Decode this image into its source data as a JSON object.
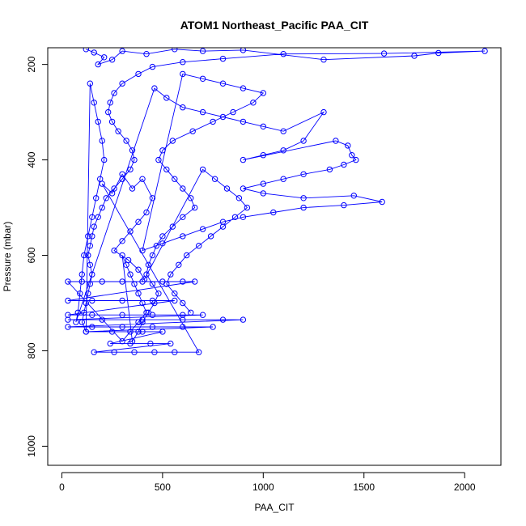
{
  "chart_data": {
    "type": "scatter",
    "title": "ATOM1 Northeast_Pacific PAA_CIT",
    "xlabel": "PAA_CIT",
    "ylabel": "Pressure (mbar)",
    "xlim": [
      -70,
      2180
    ],
    "ylim": [
      1040,
      165
    ],
    "y_reversed": true,
    "x_ticks": [
      0,
      500,
      1000,
      1500,
      2000
    ],
    "x_tick_labels": [
      "0",
      "500",
      "1000",
      "1500",
      "2000"
    ],
    "y_ticks": [
      200,
      400,
      600,
      800,
      1000
    ],
    "y_tick_labels": [
      "200",
      "400",
      "600",
      "800",
      "1000"
    ],
    "grid": false,
    "legend": "none",
    "marker": "open-circle",
    "line": "connected",
    "color": "#0000ff",
    "series": [
      {
        "points": [
          [
            120,
            168
          ],
          [
            160,
            175
          ],
          [
            210,
            185
          ],
          [
            180,
            200
          ],
          [
            250,
            190
          ],
          [
            300,
            172
          ],
          [
            420,
            178
          ],
          [
            560,
            168
          ],
          [
            700,
            172
          ],
          [
            900,
            170
          ],
          [
            1300,
            190
          ],
          [
            1750,
            182
          ],
          [
            1870,
            176
          ],
          [
            2100,
            172
          ],
          [
            1600,
            177
          ],
          [
            1100,
            178
          ],
          [
            800,
            188
          ],
          [
            600,
            195
          ],
          [
            450,
            205
          ],
          [
            380,
            220
          ],
          [
            300,
            240
          ],
          [
            260,
            260
          ],
          [
            240,
            280
          ],
          [
            230,
            300
          ],
          [
            250,
            320
          ],
          [
            280,
            340
          ],
          [
            320,
            360
          ],
          [
            350,
            380
          ],
          [
            360,
            400
          ],
          [
            340,
            420
          ],
          [
            300,
            440
          ],
          [
            260,
            460
          ],
          [
            220,
            480
          ],
          [
            200,
            500
          ],
          [
            180,
            520
          ],
          [
            160,
            540
          ],
          [
            150,
            560
          ],
          [
            140,
            580
          ],
          [
            130,
            600
          ],
          [
            140,
            620
          ],
          [
            150,
            640
          ],
          [
            140,
            660
          ],
          [
            130,
            680
          ],
          [
            120,
            700
          ],
          [
            110,
            720
          ],
          [
            100,
            740
          ],
          [
            120,
            760
          ],
          [
            140,
            240
          ],
          [
            160,
            280
          ],
          [
            180,
            320
          ],
          [
            200,
            360
          ],
          [
            210,
            400
          ],
          [
            190,
            440
          ],
          [
            170,
            480
          ],
          [
            150,
            520
          ],
          [
            130,
            560
          ],
          [
            110,
            600
          ],
          [
            100,
            640
          ],
          [
            90,
            680
          ],
          [
            80,
            720
          ],
          [
            70,
            740
          ],
          [
            460,
            250
          ],
          [
            520,
            270
          ],
          [
            600,
            290
          ],
          [
            700,
            300
          ],
          [
            800,
            310
          ],
          [
            900,
            320
          ],
          [
            1000,
            330
          ],
          [
            1100,
            340
          ],
          [
            1300,
            300
          ],
          [
            1200,
            360
          ],
          [
            1100,
            380
          ],
          [
            1000,
            390
          ],
          [
            900,
            400
          ],
          [
            1360,
            360
          ],
          [
            1420,
            370
          ],
          [
            1440,
            390
          ],
          [
            1460,
            400
          ],
          [
            1400,
            410
          ],
          [
            1330,
            420
          ],
          [
            1200,
            430
          ],
          [
            1100,
            440
          ],
          [
            1000,
            450
          ],
          [
            900,
            460
          ],
          [
            1000,
            470
          ],
          [
            1200,
            480
          ],
          [
            1450,
            475
          ],
          [
            1590,
            488
          ],
          [
            1400,
            495
          ],
          [
            1200,
            500
          ],
          [
            1050,
            510
          ],
          [
            900,
            520
          ],
          [
            800,
            530
          ],
          [
            700,
            545
          ],
          [
            600,
            560
          ],
          [
            500,
            575
          ],
          [
            400,
            590
          ],
          [
            600,
            220
          ],
          [
            700,
            230
          ],
          [
            800,
            240
          ],
          [
            900,
            250
          ],
          [
            1000,
            260
          ],
          [
            950,
            280
          ],
          [
            850,
            300
          ],
          [
            750,
            320
          ],
          [
            650,
            340
          ],
          [
            550,
            360
          ],
          [
            500,
            380
          ],
          [
            480,
            400
          ],
          [
            520,
            420
          ],
          [
            560,
            440
          ],
          [
            600,
            460
          ],
          [
            640,
            480
          ],
          [
            660,
            500
          ],
          [
            600,
            520
          ],
          [
            550,
            540
          ],
          [
            500,
            560
          ],
          [
            470,
            580
          ],
          [
            450,
            600
          ],
          [
            430,
            620
          ],
          [
            420,
            640
          ],
          [
            450,
            660
          ],
          [
            480,
            680
          ],
          [
            460,
            700
          ],
          [
            430,
            720
          ],
          [
            400,
            740
          ],
          [
            380,
            760
          ],
          [
            350,
            780
          ],
          [
            300,
            600
          ],
          [
            320,
            620
          ],
          [
            340,
            640
          ],
          [
            360,
            660
          ],
          [
            380,
            680
          ],
          [
            400,
            700
          ],
          [
            420,
            720
          ],
          [
            380,
            740
          ],
          [
            340,
            760
          ],
          [
            300,
            780
          ],
          [
            30,
            655
          ],
          [
            100,
            655
          ],
          [
            200,
            655
          ],
          [
            300,
            655
          ],
          [
            400,
            655
          ],
          [
            500,
            655
          ],
          [
            600,
            655
          ],
          [
            660,
            655
          ],
          [
            30,
            695
          ],
          [
            150,
            695
          ],
          [
            300,
            695
          ],
          [
            450,
            695
          ],
          [
            560,
            695
          ],
          [
            30,
            725
          ],
          [
            150,
            725
          ],
          [
            300,
            725
          ],
          [
            450,
            725
          ],
          [
            600,
            725
          ],
          [
            700,
            725
          ],
          [
            30,
            735
          ],
          [
            200,
            735
          ],
          [
            400,
            735
          ],
          [
            600,
            735
          ],
          [
            800,
            735
          ],
          [
            900,
            735
          ],
          [
            30,
            750
          ],
          [
            150,
            750
          ],
          [
            300,
            750
          ],
          [
            450,
            750
          ],
          [
            600,
            750
          ],
          [
            750,
            750
          ],
          [
            120,
            760
          ],
          [
            250,
            760
          ],
          [
            400,
            760
          ],
          [
            500,
            760
          ],
          [
            240,
            785
          ],
          [
            340,
            785
          ],
          [
            440,
            785
          ],
          [
            540,
            785
          ],
          [
            160,
            803
          ],
          [
            260,
            803
          ],
          [
            360,
            803
          ],
          [
            460,
            803
          ],
          [
            560,
            803
          ],
          [
            680,
            803
          ],
          [
            200,
            450
          ],
          [
            250,
            470
          ],
          [
            300,
            430
          ],
          [
            350,
            460
          ],
          [
            400,
            440
          ],
          [
            450,
            480
          ],
          [
            420,
            510
          ],
          [
            380,
            530
          ],
          [
            340,
            550
          ],
          [
            300,
            570
          ],
          [
            260,
            590
          ],
          [
            330,
            610
          ],
          [
            380,
            630
          ],
          [
            410,
            650
          ],
          [
            700,
            420
          ],
          [
            760,
            440
          ],
          [
            820,
            460
          ],
          [
            880,
            480
          ],
          [
            920,
            500
          ],
          [
            860,
            520
          ],
          [
            800,
            540
          ],
          [
            740,
            560
          ],
          [
            680,
            580
          ],
          [
            620,
            600
          ],
          [
            580,
            620
          ],
          [
            540,
            640
          ],
          [
            520,
            660
          ],
          [
            560,
            680
          ],
          [
            600,
            700
          ],
          [
            640,
            720
          ]
        ]
      }
    ]
  }
}
